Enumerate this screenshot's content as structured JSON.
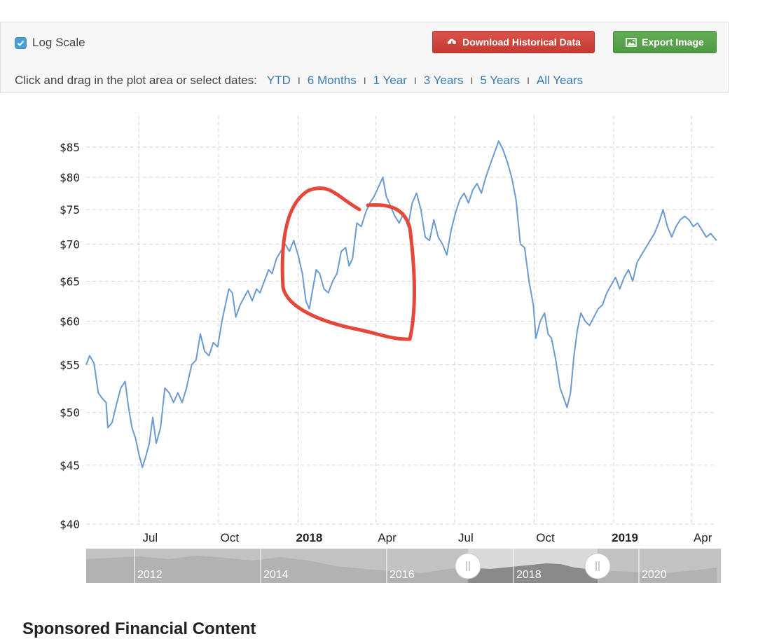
{
  "controls": {
    "log_scale_label": "Log Scale",
    "log_scale_checked": true,
    "download_label": "Download Historical Data",
    "export_label": "Export Image",
    "range_prompt": "Click and drag in the plot area or select dates:",
    "ranges": [
      "YTD",
      "6 Months",
      "1 Year",
      "3 Years",
      "5 Years",
      "All Years"
    ],
    "separator": "I"
  },
  "chart_data": {
    "type": "line",
    "yscale": "log",
    "ylim": [
      40,
      88
    ],
    "xlim": [
      "2017-05-01",
      "2019-04-30"
    ],
    "grid": true,
    "y_ticks": [
      {
        "value": 40,
        "label": "$40"
      },
      {
        "value": 45,
        "label": "$45"
      },
      {
        "value": 50,
        "label": "$50"
      },
      {
        "value": 55,
        "label": "$55"
      },
      {
        "value": 60,
        "label": "$60"
      },
      {
        "value": 65,
        "label": "$65"
      },
      {
        "value": 70,
        "label": "$70"
      },
      {
        "value": 75,
        "label": "$75"
      },
      {
        "value": 80,
        "label": "$80"
      },
      {
        "value": 85,
        "label": "$85"
      }
    ],
    "x_ticks": [
      {
        "date": "2017-07-01",
        "label": "Jul",
        "bold": false
      },
      {
        "date": "2017-10-01",
        "label": "Oct",
        "bold": false
      },
      {
        "date": "2018-01-01",
        "label": "2018",
        "bold": true
      },
      {
        "date": "2018-04-01",
        "label": "Apr",
        "bold": false
      },
      {
        "date": "2018-07-01",
        "label": "Jul",
        "bold": false
      },
      {
        "date": "2018-10-01",
        "label": "Oct",
        "bold": false
      },
      {
        "date": "2019-01-01",
        "label": "2019",
        "bold": true
      },
      {
        "date": "2019-04-01",
        "label": "Apr",
        "bold": false
      }
    ],
    "series": [
      {
        "color": "#6a9ad0",
        "points": [
          [
            "2017-05-01",
            55.0
          ],
          [
            "2017-05-05",
            56.0
          ],
          [
            "2017-05-10",
            55.2
          ],
          [
            "2017-05-15",
            52.0
          ],
          [
            "2017-05-19",
            51.5
          ],
          [
            "2017-05-24",
            51.0
          ],
          [
            "2017-05-26",
            48.5
          ],
          [
            "2017-05-31",
            49.0
          ],
          [
            "2017-06-05",
            50.8
          ],
          [
            "2017-06-10",
            52.5
          ],
          [
            "2017-06-15",
            53.2
          ],
          [
            "2017-06-19",
            50.5
          ],
          [
            "2017-06-23",
            48.5
          ],
          [
            "2017-06-27",
            47.5
          ],
          [
            "2017-07-01",
            46.0
          ],
          [
            "2017-07-05",
            44.8
          ],
          [
            "2017-07-09",
            45.8
          ],
          [
            "2017-07-13",
            47.0
          ],
          [
            "2017-07-17",
            49.5
          ],
          [
            "2017-07-21",
            47.0
          ],
          [
            "2017-07-26",
            48.5
          ],
          [
            "2017-07-31",
            52.5
          ],
          [
            "2017-08-05",
            52.0
          ],
          [
            "2017-08-10",
            51.0
          ],
          [
            "2017-08-15",
            52.0
          ],
          [
            "2017-08-20",
            51.0
          ],
          [
            "2017-08-25",
            52.5
          ],
          [
            "2017-08-31",
            55.0
          ],
          [
            "2017-09-05",
            55.5
          ],
          [
            "2017-09-10",
            58.5
          ],
          [
            "2017-09-15",
            56.5
          ],
          [
            "2017-09-20",
            56.0
          ],
          [
            "2017-09-25",
            57.5
          ],
          [
            "2017-09-30",
            57.0
          ],
          [
            "2017-10-05",
            60.0
          ],
          [
            "2017-10-10",
            62.5
          ],
          [
            "2017-10-13",
            64.0
          ],
          [
            "2017-10-17",
            63.5
          ],
          [
            "2017-10-21",
            60.5
          ],
          [
            "2017-10-26",
            62.0
          ],
          [
            "2017-10-31",
            63.0
          ],
          [
            "2017-11-04",
            63.8
          ],
          [
            "2017-11-09",
            62.5
          ],
          [
            "2017-11-14",
            64.0
          ],
          [
            "2017-11-18",
            63.5
          ],
          [
            "2017-11-23",
            65.0
          ],
          [
            "2017-11-28",
            66.5
          ],
          [
            "2017-12-02",
            66.0
          ],
          [
            "2017-12-07",
            68.0
          ],
          [
            "2017-12-12",
            69.0
          ],
          [
            "2017-12-17",
            70.0
          ],
          [
            "2017-12-22",
            69.0
          ],
          [
            "2017-12-27",
            70.5
          ],
          [
            "2018-01-01",
            68.5
          ],
          [
            "2018-01-06",
            66.0
          ],
          [
            "2018-01-10",
            62.5
          ],
          [
            "2018-01-14",
            61.5
          ],
          [
            "2018-01-18",
            64.0
          ],
          [
            "2018-01-22",
            66.5
          ],
          [
            "2018-01-26",
            66.0
          ],
          [
            "2018-01-31",
            64.0
          ],
          [
            "2018-02-05",
            63.5
          ],
          [
            "2018-02-10",
            65.0
          ],
          [
            "2018-02-15",
            66.0
          ],
          [
            "2018-02-20",
            69.0
          ],
          [
            "2018-02-25",
            69.5
          ],
          [
            "2018-03-01",
            67.0
          ],
          [
            "2018-03-05",
            68.0
          ],
          [
            "2018-03-10",
            73.0
          ],
          [
            "2018-03-15",
            72.5
          ],
          [
            "2018-03-20",
            74.5
          ],
          [
            "2018-03-25",
            76.0
          ],
          [
            "2018-03-30",
            77.0
          ],
          [
            "2018-04-04",
            78.5
          ],
          [
            "2018-04-09",
            80.0
          ],
          [
            "2018-04-13",
            77.0
          ],
          [
            "2018-04-18",
            75.5
          ],
          [
            "2018-04-23",
            74.0
          ],
          [
            "2018-04-28",
            73.0
          ],
          [
            "2018-05-03",
            74.5
          ],
          [
            "2018-05-08",
            72.5
          ],
          [
            "2018-05-13",
            76.0
          ],
          [
            "2018-05-18",
            77.5
          ],
          [
            "2018-05-23",
            75.0
          ],
          [
            "2018-05-28",
            71.0
          ],
          [
            "2018-06-02",
            70.5
          ],
          [
            "2018-06-07",
            73.5
          ],
          [
            "2018-06-12",
            71.0
          ],
          [
            "2018-06-17",
            70.0
          ],
          [
            "2018-06-22",
            68.5
          ],
          [
            "2018-06-27",
            72.0
          ],
          [
            "2018-07-02",
            74.5
          ],
          [
            "2018-07-07",
            76.5
          ],
          [
            "2018-07-12",
            77.5
          ],
          [
            "2018-07-17",
            76.0
          ],
          [
            "2018-07-22",
            78.0
          ],
          [
            "2018-07-27",
            79.0
          ],
          [
            "2018-08-01",
            77.5
          ],
          [
            "2018-08-06",
            80.0
          ],
          [
            "2018-08-11",
            82.0
          ],
          [
            "2018-08-16",
            84.0
          ],
          [
            "2018-08-21",
            86.0
          ],
          [
            "2018-08-26",
            84.5
          ],
          [
            "2018-08-31",
            82.5
          ],
          [
            "2018-09-05",
            80.0
          ],
          [
            "2018-09-10",
            76.5
          ],
          [
            "2018-09-15",
            70.0
          ],
          [
            "2018-09-20",
            69.5
          ],
          [
            "2018-09-25",
            65.0
          ],
          [
            "2018-09-30",
            62.0
          ],
          [
            "2018-10-03",
            58.0
          ],
          [
            "2018-10-08",
            60.0
          ],
          [
            "2018-10-13",
            61.0
          ],
          [
            "2018-10-17",
            58.5
          ],
          [
            "2018-10-21",
            58.0
          ],
          [
            "2018-10-26",
            55.5
          ],
          [
            "2018-10-31",
            52.5
          ],
          [
            "2018-11-04",
            51.5
          ],
          [
            "2018-11-08",
            50.5
          ],
          [
            "2018-11-12",
            52.0
          ],
          [
            "2018-11-16",
            56.0
          ],
          [
            "2018-11-20",
            59.0
          ],
          [
            "2018-11-24",
            61.0
          ],
          [
            "2018-11-29",
            60.0
          ],
          [
            "2018-12-04",
            59.5
          ],
          [
            "2018-12-09",
            60.5
          ],
          [
            "2018-12-14",
            61.5
          ],
          [
            "2018-12-19",
            62.0
          ],
          [
            "2018-12-24",
            63.5
          ],
          [
            "2018-12-29",
            64.5
          ],
          [
            "2019-01-03",
            65.5
          ],
          [
            "2019-01-08",
            64.0
          ],
          [
            "2019-01-13",
            65.5
          ],
          [
            "2019-01-18",
            66.5
          ],
          [
            "2019-01-23",
            65.0
          ],
          [
            "2019-01-28",
            67.5
          ],
          [
            "2019-02-02",
            68.5
          ],
          [
            "2019-02-07",
            69.5
          ],
          [
            "2019-02-12",
            70.5
          ],
          [
            "2019-02-17",
            71.5
          ],
          [
            "2019-02-22",
            73.0
          ],
          [
            "2019-02-27",
            75.0
          ],
          [
            "2019-03-04",
            72.5
          ],
          [
            "2019-03-09",
            71.0
          ],
          [
            "2019-03-14",
            72.5
          ],
          [
            "2019-03-19",
            73.5
          ],
          [
            "2019-03-24",
            74.0
          ],
          [
            "2019-03-29",
            73.5
          ],
          [
            "2019-04-03",
            72.5
          ],
          [
            "2019-04-08",
            73.0
          ],
          [
            "2019-04-13",
            72.0
          ],
          [
            "2019-04-18",
            71.0
          ],
          [
            "2019-04-23",
            71.5
          ],
          [
            "2019-04-30",
            70.5
          ]
        ]
      }
    ],
    "navigator": {
      "labels": [
        "2012",
        "2014",
        "2016",
        "2018",
        "2020"
      ]
    }
  },
  "footer": {
    "heading": "Sponsored Financial Content"
  }
}
